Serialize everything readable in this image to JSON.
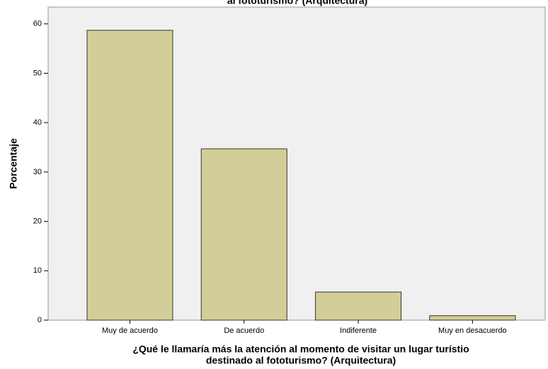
{
  "chart_data": {
    "type": "bar",
    "title": "al fototurismo? (Arquitectura)",
    "categories": [
      "Muy de acuerdo",
      "De acuerdo",
      "Indiferente",
      "Muy en desacuerdo"
    ],
    "values": [
      58.7,
      34.7,
      5.7,
      0.9
    ],
    "color": "#d3ce97",
    "ylim": [
      0,
      63.4
    ],
    "yticks": [
      0,
      10,
      20,
      30,
      40,
      50,
      60
    ],
    "y_label": "Porcentaje",
    "x_label": [
      "¿Qué le llamaría más la atención al momento de visitar un lugar turístio",
      "destinado al fototurismo? (Arquitectura)"
    ],
    "grid": false
  }
}
